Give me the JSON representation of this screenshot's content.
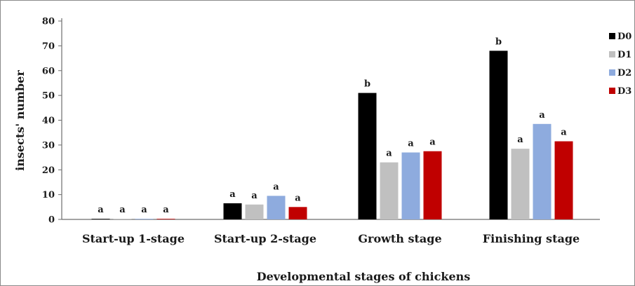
{
  "chart_data": {
    "type": "bar",
    "title": "",
    "xlabel": "Developmental stages of chickens",
    "ylabel": "insects' number",
    "ylim": [
      0,
      80
    ],
    "yticks": [
      0,
      10,
      20,
      30,
      40,
      50,
      60,
      70,
      80
    ],
    "grid": false,
    "legend_position": "right",
    "categories": [
      "Start-up 1-stage",
      "Start-up 2-stage",
      "Growth stage",
      "Finishing stage"
    ],
    "series": [
      {
        "name": "D0",
        "color": "#000000",
        "values": [
          0,
          6.5,
          51,
          68
        ],
        "labels": [
          "a",
          "a",
          "b",
          "b"
        ]
      },
      {
        "name": "D1",
        "color": "#c0c0c0",
        "values": [
          0,
          6,
          23,
          28.5
        ],
        "labels": [
          "a",
          "a",
          "a",
          "a"
        ]
      },
      {
        "name": "D2",
        "color": "#8eabde",
        "values": [
          0,
          9.5,
          27,
          38.5
        ],
        "labels": [
          "a",
          "a",
          "a",
          "a"
        ]
      },
      {
        "name": "D3",
        "color": "#c00000",
        "values": [
          0,
          5,
          27.5,
          31.5
        ],
        "labels": [
          "a",
          "a",
          "a",
          "a"
        ]
      }
    ]
  }
}
